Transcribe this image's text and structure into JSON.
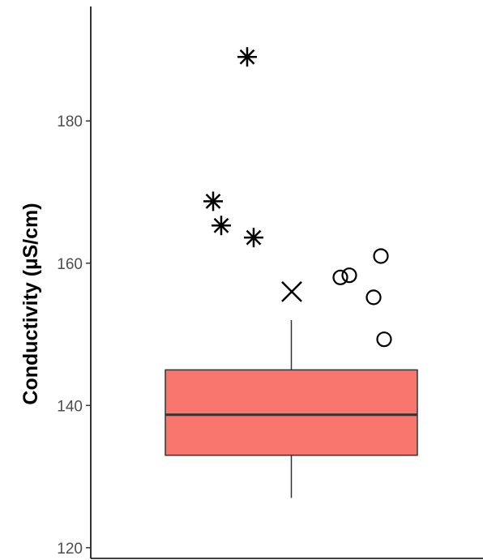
{
  "chart_data": {
    "type": "box",
    "title": "",
    "xlabel": "",
    "ylabel": "Conductivity (µS/cm)",
    "ylim": [
      118.5,
      197
    ],
    "yticks": [
      120,
      140,
      160,
      180
    ],
    "grid": false,
    "box": {
      "lower_whisker": 127,
      "q1": 133,
      "median": 138.7,
      "q3": 145,
      "upper_whisker": 152,
      "fill_color": "#F8766D",
      "edge_color": "#333333"
    },
    "mean": 156,
    "outliers_circle": [
      158,
      158.3,
      161,
      155.2,
      149.3
    ],
    "outliers_asterisk": [
      189,
      168.7,
      165.3,
      163.6
    ]
  }
}
